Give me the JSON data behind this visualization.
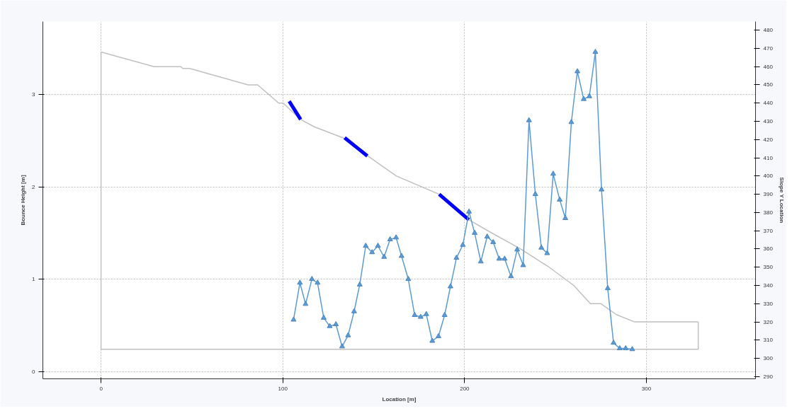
{
  "chart_data": {
    "type": "line",
    "xlabel": "Location [m]",
    "ylabel": "Bounce Height [m]",
    "y2label": "Slope Y Location",
    "xlim": [
      -32,
      360
    ],
    "xticks": [
      0,
      100,
      200,
      300
    ],
    "ylim": [
      -0.08,
      3.79
    ],
    "yticks": [
      0,
      1,
      2,
      3
    ],
    "y2lim": [
      288.8,
      484.7
    ],
    "y2ticks": [
      290,
      300,
      310,
      320,
      330,
      340,
      350,
      360,
      370,
      380,
      390,
      400,
      410,
      420,
      430,
      440,
      450,
      460,
      470,
      480
    ],
    "grid": true,
    "series": [
      {
        "axis": "y2",
        "color": "#c0c0c0",
        "marker": "none",
        "x": [
          0,
          29.2,
          43.8,
          45,
          48.7,
          80.9,
          86.2,
          97.7,
          100.2,
          109.8,
          117.3,
          133,
          148.2,
          162.5,
          186,
          202.3,
          214.5,
          230.8,
          246.5,
          260,
          269.2,
          275,
          283.5,
          293.5,
          328.5
        ],
        "values": [
          468,
          460,
          460,
          459,
          459,
          450,
          450,
          440,
          440,
          431,
          427,
          421,
          410,
          400,
          390,
          376,
          369,
          360,
          350,
          340,
          330,
          330,
          324,
          320,
          320
        ]
      },
      {
        "axis": "y2",
        "color": "#c0c0c0",
        "marker": "none",
        "x": [
          0,
          0
        ],
        "values": [
          468,
          305
        ]
      },
      {
        "axis": "y2",
        "color": "#c0c0c0",
        "marker": "none",
        "x": [
          0,
          328.5
        ],
        "values": [
          305,
          305
        ]
      },
      {
        "axis": "y2",
        "color": "#c0c0c0",
        "marker": "none",
        "x": [
          328.5,
          328.5
        ],
        "values": [
          305,
          320
        ]
      },
      {
        "axis": "y2",
        "color": "#0000ff",
        "marker": "none",
        "x": [
          103.5,
          109.8
        ],
        "values": [
          441,
          431
        ]
      },
      {
        "axis": "y2",
        "color": "#0000ff",
        "marker": "none",
        "x": [
          134,
          146.5
        ],
        "values": [
          421,
          411
        ]
      },
      {
        "axis": "y2",
        "color": "#0000ff",
        "marker": "none",
        "x": [
          186,
          202.3
        ],
        "values": [
          390,
          376
        ]
      },
      {
        "axis": "y",
        "color": "#5b9bd5",
        "marker": "triangle",
        "x": [
          105.9,
          109.4,
          112.5,
          116,
          119.1,
          122.5,
          125.8,
          129.2,
          132.6,
          135.9,
          139.2,
          142.3,
          145.6,
          149.1,
          152.3,
          155.7,
          159,
          162.3,
          165.3,
          169,
          172.5,
          175.8,
          178.9,
          182.2,
          185.6,
          189,
          192.2,
          195.5,
          199,
          202.4,
          205.5,
          208.9,
          212.4,
          215.7,
          219,
          222,
          225.5,
          228.9,
          232.2,
          235.4,
          238.9,
          242.2,
          245.4,
          248.7,
          252.3,
          255.4,
          258.7,
          262,
          265.5,
          268.6,
          271.9,
          275.3,
          278.7,
          281.9,
          285.3,
          288.6,
          292.2
        ],
        "values": [
          0.56,
          0.96,
          0.73,
          1.0,
          0.96,
          0.58,
          0.49,
          0.51,
          0.27,
          0.39,
          0.65,
          0.94,
          1.36,
          1.29,
          1.36,
          1.24,
          1.43,
          1.45,
          1.25,
          1.0,
          0.61,
          0.59,
          0.62,
          0.33,
          0.38,
          0.61,
          0.92,
          1.23,
          1.37,
          1.73,
          1.5,
          1.19,
          1.46,
          1.4,
          1.22,
          1.22,
          1.03,
          1.32,
          1.15,
          2.72,
          1.92,
          1.34,
          1.28,
          2.14,
          1.86,
          1.66,
          2.7,
          3.25,
          2.95,
          2.98,
          3.46,
          1.97,
          0.9,
          0.31,
          0.25,
          0.25,
          0.24
        ]
      }
    ]
  }
}
